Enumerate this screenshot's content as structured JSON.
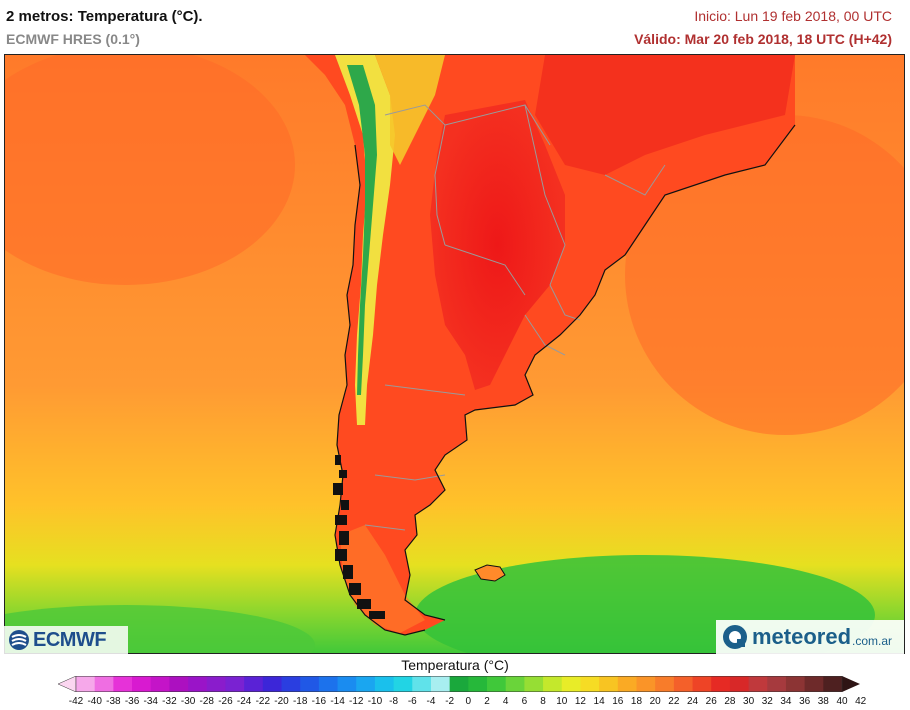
{
  "header": {
    "title": "2 metros: Temperatura (°C).",
    "model": "ECMWF HRES (0.1°)",
    "init": "Inicio: Lun 19 feb 2018, 00 UTC",
    "valid": "Válido: Mar 20 feb 2018, 18 UTC (H+42)"
  },
  "map": {
    "region": "South America (Chile, Argentina, Uruguay, southern Brazil, Paraguay)",
    "variable": "2 m temperature",
    "palette": {
      "ocean_warm": "#ff7a2a",
      "ocean_mid": "#ff9a33",
      "ocean_cool": "#ffd02a",
      "ocean_cold_yellow": "#d6e020",
      "ocean_green": "#3ec83a",
      "land_hot": "#f01818",
      "land_warm": "#ff4a20",
      "andes_yellow": "#f2e040",
      "andes_green": "#2ea84a",
      "borders": "#9a9a9a",
      "coast": "#111111"
    }
  },
  "logos": {
    "left": "ECMWF",
    "left_icon": "ecmwf-icon",
    "right": "meteored",
    "right_tld": ".com.ar",
    "right_icon": "meteored-icon"
  },
  "legend": {
    "title": "Temperatura (°C)",
    "ticks": [
      "-42",
      "-40",
      "-38",
      "-36",
      "-34",
      "-32",
      "-30",
      "-28",
      "-26",
      "-24",
      "-22",
      "-20",
      "-18",
      "-16",
      "-14",
      "-12",
      "-10",
      "-8",
      "-6",
      "-4",
      "-2",
      "0",
      "2",
      "4",
      "6",
      "8",
      "10",
      "12",
      "14",
      "16",
      "18",
      "20",
      "22",
      "24",
      "26",
      "28",
      "30",
      "32",
      "34",
      "36",
      "38",
      "40",
      "42"
    ],
    "colors": [
      "#fbd6f0",
      "#f6a8ea",
      "#ef6ee2",
      "#e632d8",
      "#d81ad0",
      "#c414c8",
      "#ac10c0",
      "#9a14c8",
      "#8a1ccc",
      "#7a22d2",
      "#5a22d6",
      "#3c26d8",
      "#2a3ee0",
      "#2058e6",
      "#1c72ec",
      "#1a8cf0",
      "#1aa6f0",
      "#1ac0ec",
      "#22d4e4",
      "#60e2ea",
      "#a8eef0",
      "#1aa83c",
      "#26b83a",
      "#40c83a",
      "#6ad43a",
      "#96de34",
      "#c4e82c",
      "#e8ec28",
      "#f6dc24",
      "#f8c422",
      "#faaa24",
      "#fa9428",
      "#f87c2a",
      "#f4602a",
      "#ee4426",
      "#e62a24",
      "#d82828",
      "#c0393c",
      "#a63a3e",
      "#8c3434",
      "#6e2a2a",
      "#4e2020",
      "#2e1414"
    ]
  }
}
